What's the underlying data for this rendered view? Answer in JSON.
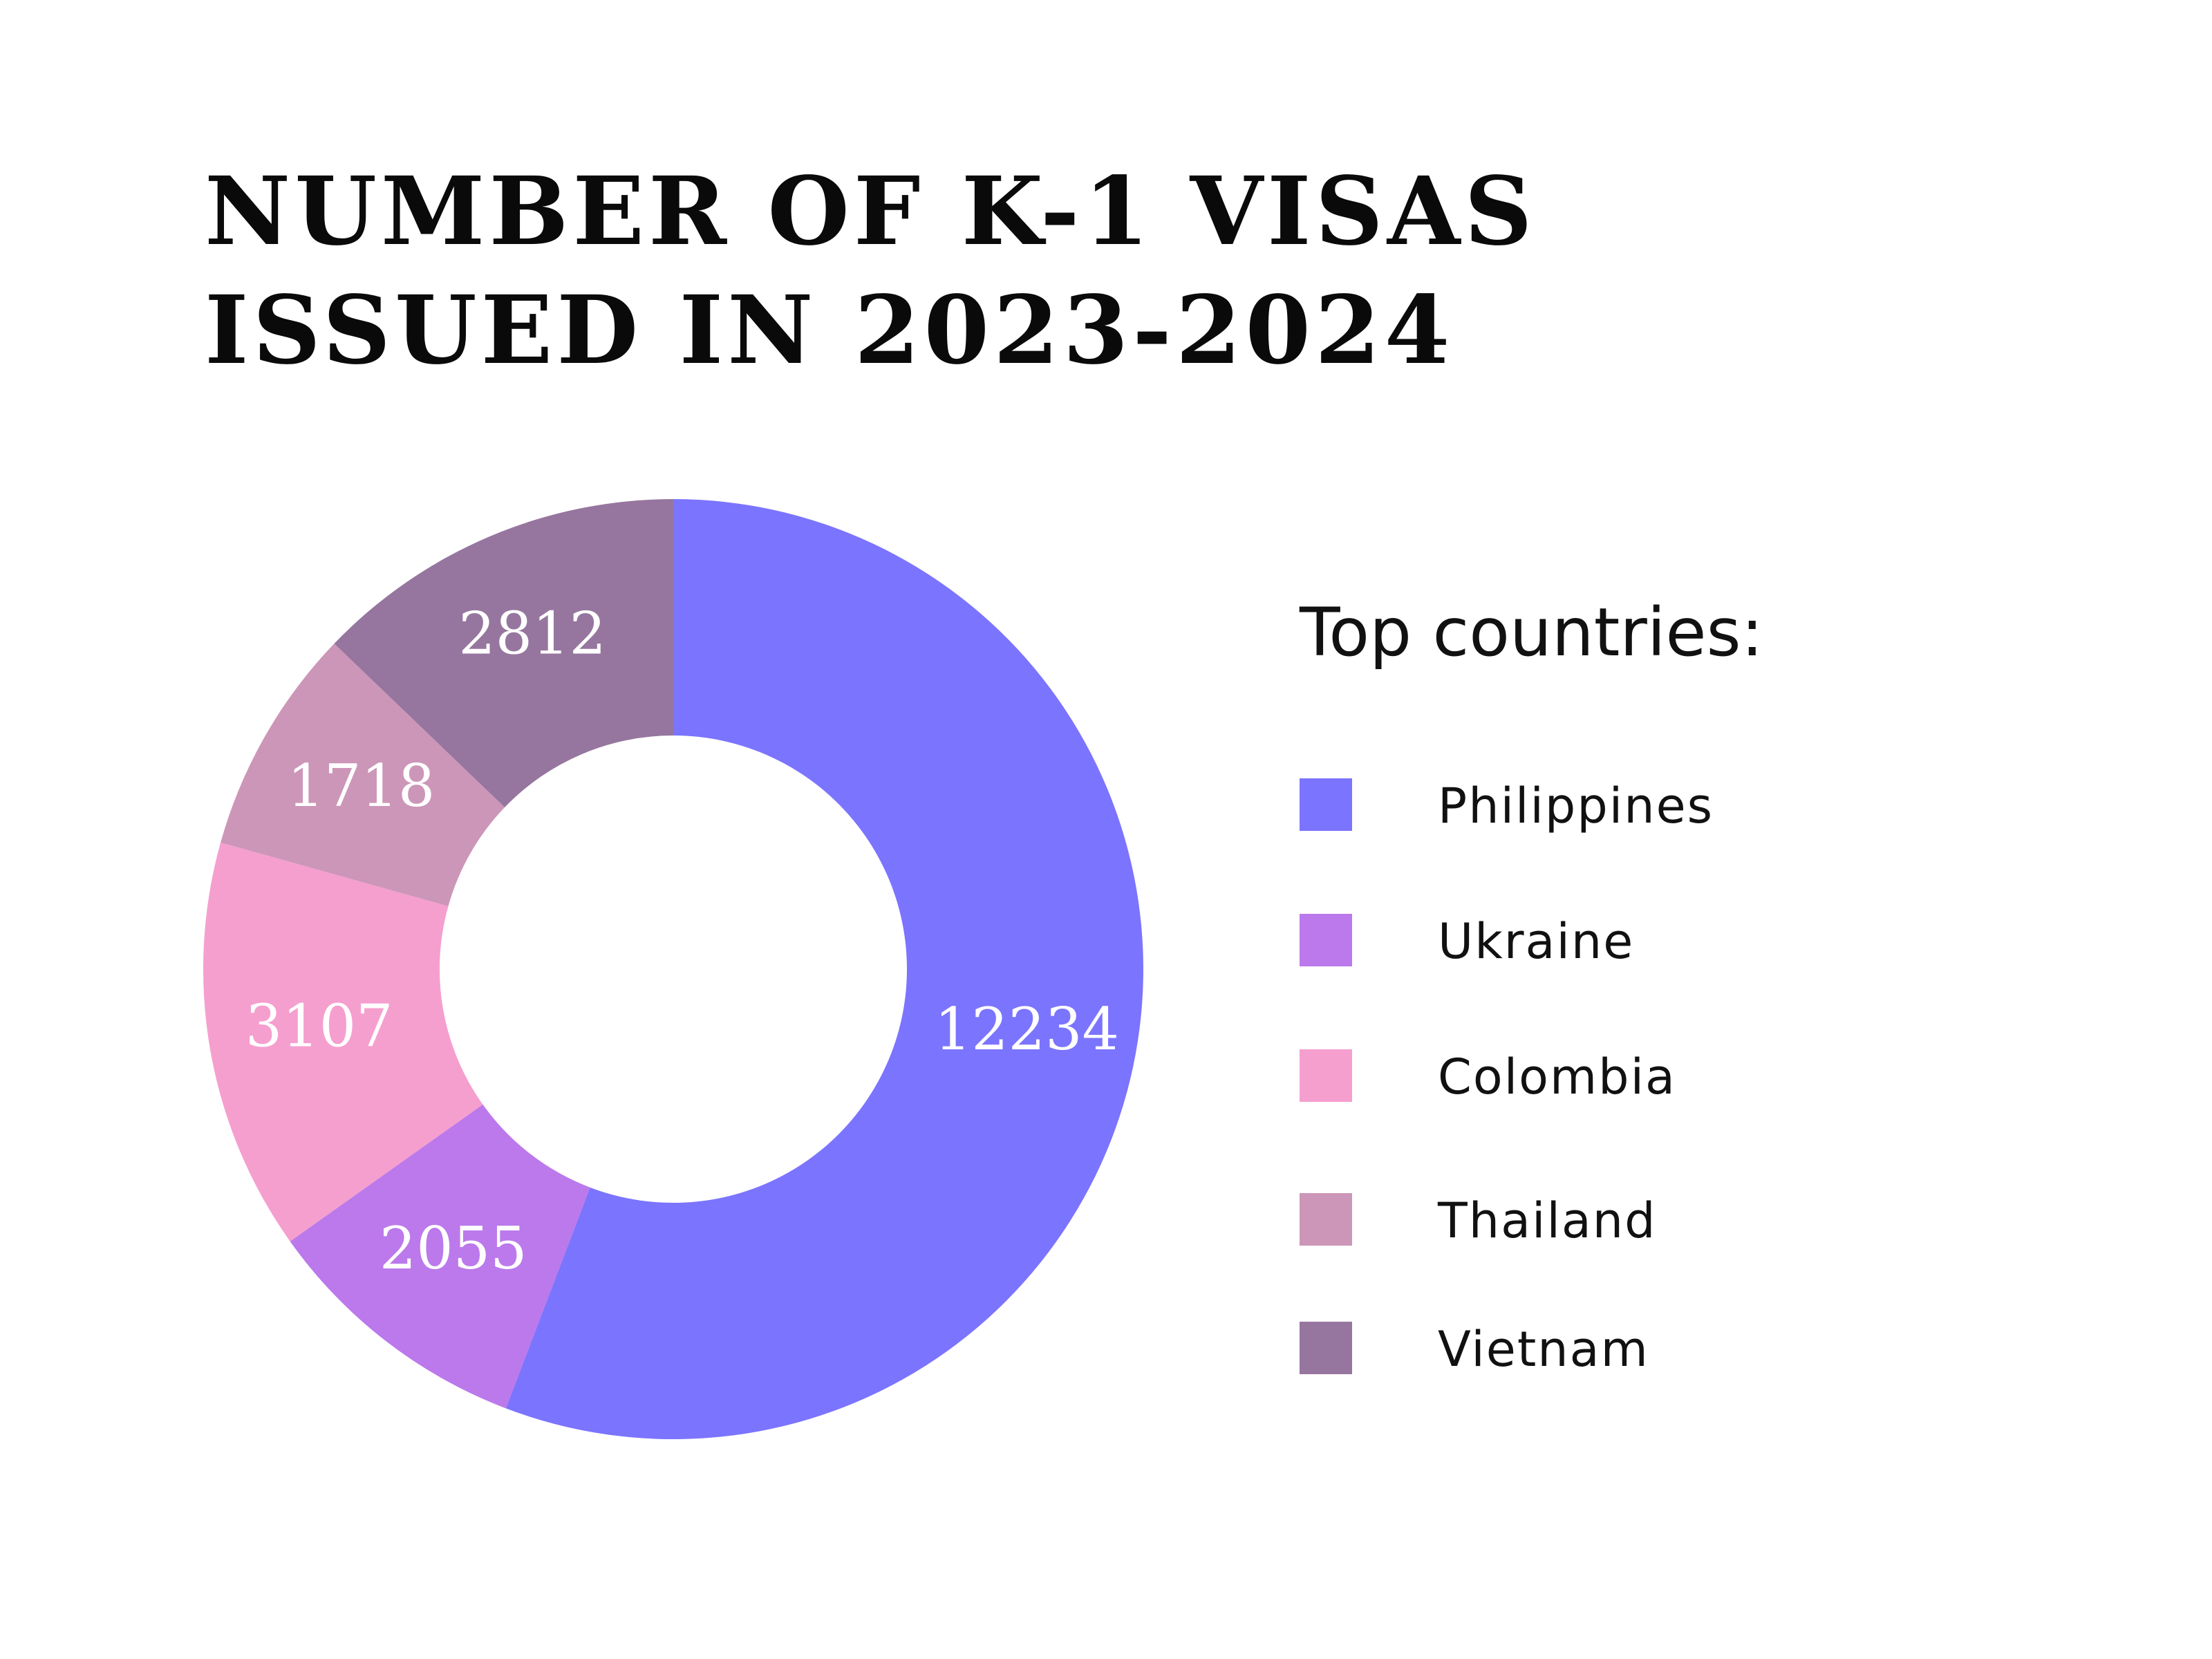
{
  "chart_data": {
    "type": "pie",
    "title_lines": [
      "NUMBER OF K-1 VISAS",
      "ISSUED IN 2023-2024"
    ],
    "categories": [
      "Philippines",
      "Ukraine",
      "Colombia",
      "Thailand",
      "Vietnam"
    ],
    "values": [
      12234,
      2055,
      3107,
      1718,
      2812
    ],
    "colors": [
      "#7b74fe",
      "#bb79eb",
      "#f59fcf",
      "#cc96b8",
      "#96769f"
    ],
    "legend_title": "Top countries:",
    "legend_position": "right"
  }
}
